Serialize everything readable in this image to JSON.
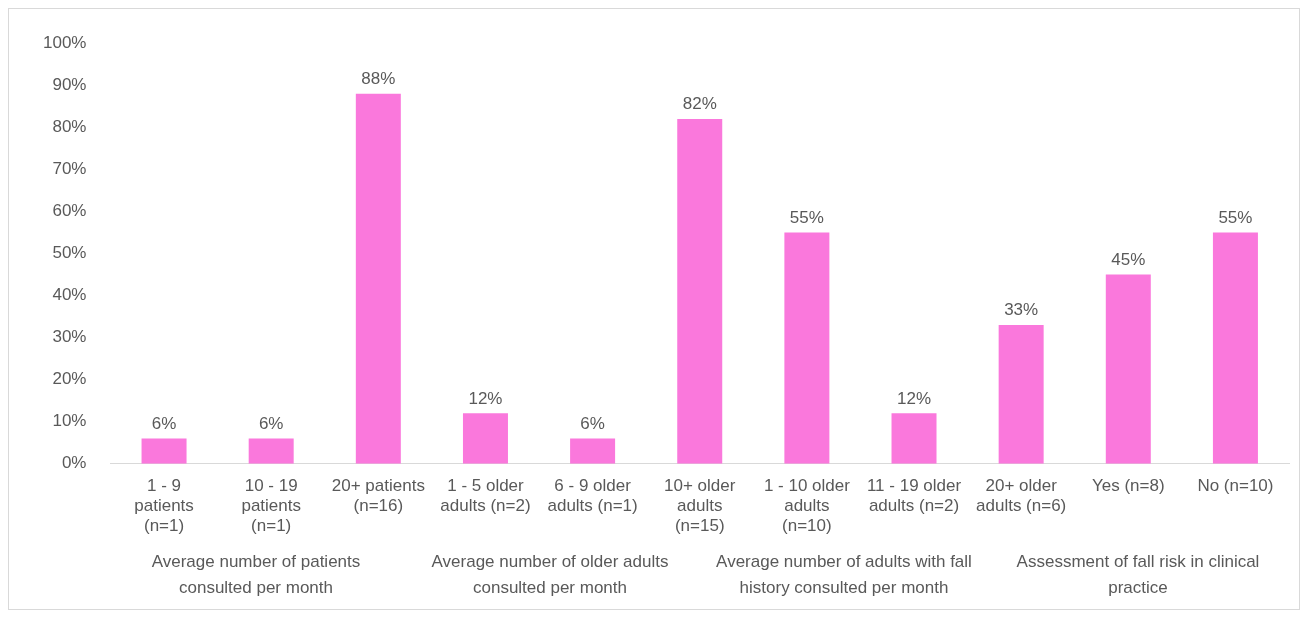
{
  "chart_data": {
    "type": "bar",
    "categories": [
      "1 - 9 patients (n=1)",
      "10 - 19 patients (n=1)",
      "20+ patients (n=16)",
      "1 - 5 older adults (n=2)",
      "6 - 9 older adults (n=1)",
      "10+ older adults (n=15)",
      "1 - 10 older adults (n=10)",
      "11 - 19 older adults (n=2)",
      "20+ older adults (n=6)",
      "Yes (n=8)",
      "No (n=10)"
    ],
    "values": [
      6,
      6,
      88,
      12,
      6,
      82,
      55,
      12,
      33,
      45,
      55
    ],
    "value_labels": [
      "6%",
      "6%",
      "88%",
      "12%",
      "6%",
      "82%",
      "55%",
      "12%",
      "33%",
      "45%",
      "55%"
    ],
    "color": "#fa78dc",
    "ylim": [
      0,
      100
    ],
    "yticks": [
      {
        "value": 0,
        "label": "0%"
      },
      {
        "value": 10,
        "label": "10%"
      },
      {
        "value": 20,
        "label": "20%"
      },
      {
        "value": 30,
        "label": "30%"
      },
      {
        "value": 40,
        "label": "40%"
      },
      {
        "value": 50,
        "label": "50%"
      },
      {
        "value": 60,
        "label": "60%"
      },
      {
        "value": 70,
        "label": "70%"
      },
      {
        "value": 80,
        "label": "80%"
      },
      {
        "value": 90,
        "label": "90%"
      },
      {
        "value": 100,
        "label": "100%"
      }
    ],
    "grid": false,
    "legend": false,
    "annotations": [
      "Average number of patients consulted per month",
      "Average number of older adults consulted per month",
      "Average number of adults with fall history consulted per month",
      "Assessment of fall risk in clinical practice"
    ]
  }
}
